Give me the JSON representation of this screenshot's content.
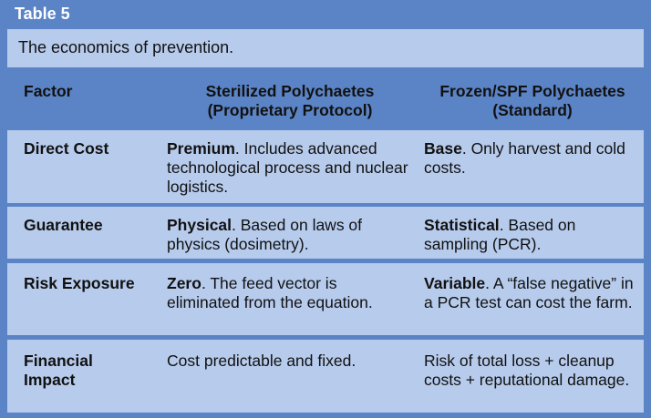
{
  "table": {
    "label": "Table 5",
    "caption": "The economics of prevention.",
    "headers": {
      "factor": "Factor",
      "col2_line1": "Sterilized Polychaetes",
      "col2_line2": "(Proprietary Protocol)",
      "col3_line1": "Frozen/SPF Polychaetes",
      "col3_line2": "(Standard)"
    },
    "rows": [
      {
        "factor": "Direct Cost",
        "c2_bold": "Premium",
        "c2_rest": ". Includes advanced technological process and nuclear logistics.",
        "c3_bold": "Base",
        "c3_rest": ". Only harvest and cold costs."
      },
      {
        "factor": "Guarantee",
        "c2_bold": "Physical",
        "c2_rest": ". Based on laws of physics (dosimetry).",
        "c3_bold": "Statistical",
        "c3_rest": ". Based on sampling (PCR)."
      },
      {
        "factor": "Risk Exposure",
        "c2_bold": "Zero",
        "c2_rest": ". The feed vector is eliminated from the equation.",
        "c3_bold": "Variable",
        "c3_rest": ". A “false negative” in a PCR test can cost the farm."
      },
      {
        "factor_line1": "Financial",
        "factor_line2": "Impact",
        "c2_text": "Cost predictable and fixed.",
        "c3_text": "Risk of total loss + cleanup costs + reputational damage."
      }
    ]
  },
  "colors": {
    "header_blue": "#5b84c6",
    "row_light_blue": "#b7cbec"
  }
}
